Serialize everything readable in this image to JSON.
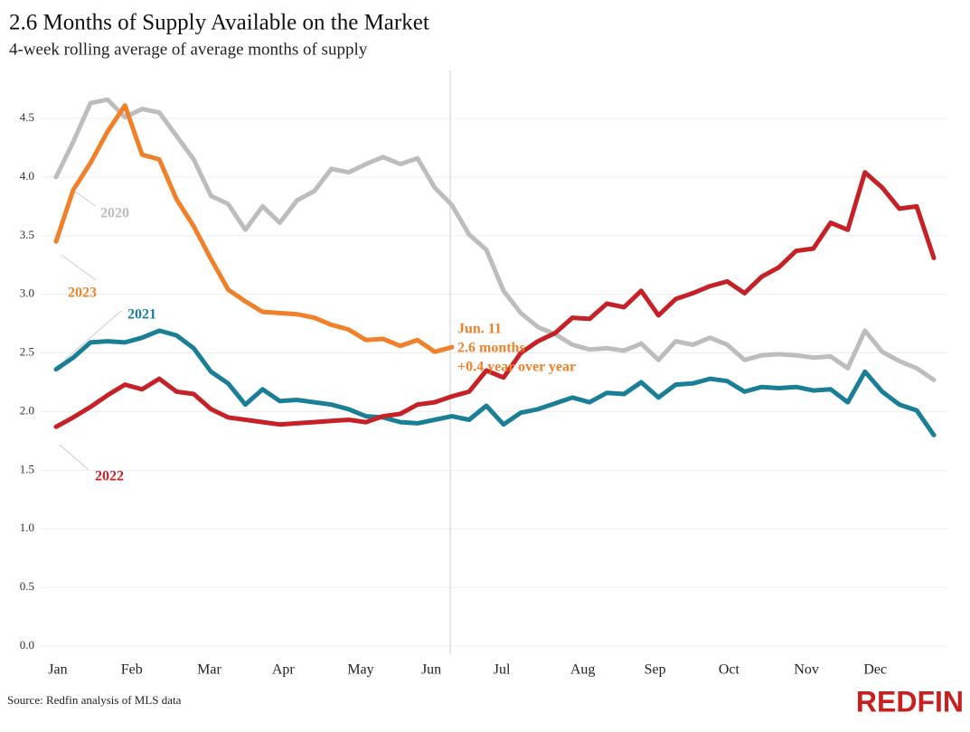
{
  "chart_data": {
    "type": "line",
    "title": "2.6 Months of Supply Available on the Market",
    "subtitle": "4-week rolling average of average months of supply",
    "source": "Source: Redfin analysis of MLS data",
    "brand": "REDFIN",
    "xlim": [
      1,
      52
    ],
    "ylim": [
      0,
      4.5
    ],
    "yticks": [
      {
        "value": 0,
        "label": "0.0"
      },
      {
        "value": 0.5,
        "label": "0.5"
      },
      {
        "value": 1,
        "label": "1.0"
      },
      {
        "value": 1.5,
        "label": "1.5"
      },
      {
        "value": 2,
        "label": "2.0"
      },
      {
        "value": 2.5,
        "label": "2.5"
      },
      {
        "value": 3,
        "label": "3.0"
      },
      {
        "value": 3.5,
        "label": "3.5"
      },
      {
        "value": 4,
        "label": "4.0"
      },
      {
        "value": 4.5,
        "label": "4.5"
      }
    ],
    "xticks": [
      {
        "value": 1.1,
        "label": "Jan"
      },
      {
        "value": 5.4,
        "label": "Feb"
      },
      {
        "value": 9.9,
        "label": "Mar"
      },
      {
        "value": 14.2,
        "label": "Apr"
      },
      {
        "value": 18.7,
        "label": "May"
      },
      {
        "value": 22.8,
        "label": "Jun"
      },
      {
        "value": 26.9,
        "label": "Jul"
      },
      {
        "value": 31.6,
        "label": "Aug"
      },
      {
        "value": 35.8,
        "label": "Sep"
      },
      {
        "value": 40.1,
        "label": "Oct"
      },
      {
        "value": 44.6,
        "label": "Nov"
      },
      {
        "value": 48.6,
        "label": "Dec"
      }
    ],
    "grid": true,
    "x": [
      1,
      2,
      3,
      4,
      5,
      6,
      7,
      8,
      9,
      10,
      11,
      12,
      13,
      14,
      15,
      16,
      17,
      18,
      19,
      20,
      21,
      22,
      23,
      24,
      25,
      26,
      27,
      28,
      29,
      30,
      31,
      32,
      33,
      34,
      35,
      36,
      37,
      38,
      39,
      40,
      41,
      42,
      43,
      44,
      45,
      46,
      47,
      48,
      49,
      50,
      51,
      52
    ],
    "series": [
      {
        "name": "2020",
        "color": "#bdbdbd",
        "values": [
          4.0,
          4.3,
          4.63,
          4.66,
          4.51,
          4.58,
          4.55,
          4.35,
          4.15,
          3.84,
          3.77,
          3.55,
          3.75,
          3.61,
          3.8,
          3.88,
          4.07,
          4.04,
          4.11,
          4.17,
          4.11,
          4.16,
          3.91,
          3.76,
          3.51,
          3.38,
          3.03,
          2.84,
          2.72,
          2.66,
          2.57,
          2.53,
          2.54,
          2.52,
          2.58,
          2.44,
          2.6,
          2.57,
          2.63,
          2.57,
          2.44,
          2.48,
          2.49,
          2.48,
          2.46,
          2.47,
          2.37,
          2.69,
          2.51,
          2.43,
          2.37,
          2.27
        ]
      },
      {
        "name": "2021",
        "color": "#1a7f96",
        "values": [
          2.36,
          2.46,
          2.59,
          2.6,
          2.59,
          2.63,
          2.69,
          2.65,
          2.54,
          2.34,
          2.24,
          2.06,
          2.19,
          2.09,
          2.1,
          2.08,
          2.06,
          2.02,
          1.96,
          1.95,
          1.91,
          1.9,
          1.93,
          1.96,
          1.93,
          2.05,
          1.89,
          1.99,
          2.02,
          2.07,
          2.12,
          2.08,
          2.16,
          2.15,
          2.25,
          2.12,
          2.23,
          2.24,
          2.28,
          2.26,
          2.17,
          2.21,
          2.2,
          2.21,
          2.18,
          2.19,
          2.08,
          2.34,
          2.17,
          2.06,
          2.01,
          1.8
        ]
      },
      {
        "name": "2022",
        "color": "#c52127",
        "values": [
          1.87,
          1.95,
          2.04,
          2.14,
          2.23,
          2.19,
          2.28,
          2.17,
          2.15,
          2.02,
          1.95,
          1.93,
          1.91,
          1.89,
          1.9,
          1.91,
          1.92,
          1.93,
          1.91,
          1.96,
          1.98,
          2.06,
          2.08,
          2.13,
          2.17,
          2.35,
          2.29,
          2.5,
          2.6,
          2.67,
          2.8,
          2.79,
          2.92,
          2.89,
          3.03,
          2.82,
          2.96,
          3.01,
          3.07,
          3.11,
          3.01,
          3.15,
          3.23,
          3.37,
          3.39,
          3.61,
          3.55,
          4.04,
          3.91,
          3.73,
          3.75,
          3.31
        ]
      },
      {
        "name": "2023",
        "color": "#f0812a",
        "values": [
          3.45,
          3.89,
          4.12,
          4.39,
          4.61,
          4.19,
          4.15,
          3.81,
          3.58,
          3.3,
          3.04,
          2.94,
          2.85,
          2.84,
          2.83,
          2.8,
          2.74,
          2.7,
          2.61,
          2.62,
          2.56,
          2.61,
          2.51,
          2.55,
          null,
          null,
          null,
          null,
          null,
          null,
          null,
          null,
          null,
          null,
          null,
          null,
          null,
          null,
          null,
          null,
          null,
          null,
          null,
          null,
          null,
          null,
          null,
          null,
          null,
          null,
          null,
          null
        ]
      }
    ],
    "annotation": {
      "x": 23.9,
      "color": "#f0812a",
      "lines": [
        "Jun. 11",
        "2.6 months",
        "+0.4 year over year"
      ]
    }
  }
}
